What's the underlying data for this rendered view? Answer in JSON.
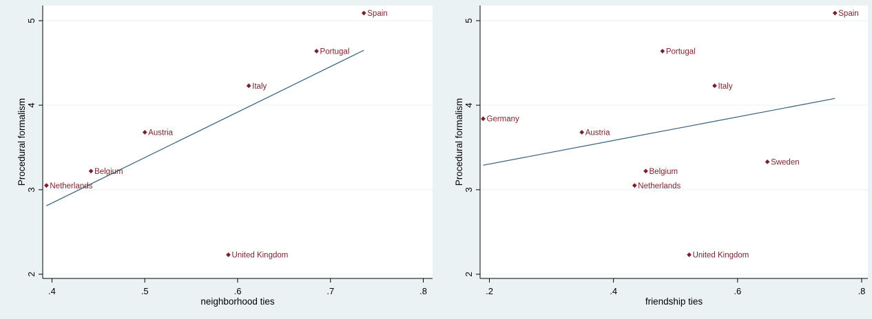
{
  "chart_data": [
    {
      "type": "scatter",
      "xlabel": "neighborhood ties",
      "ylabel": "Procedural formalism",
      "xlim": [
        0.39,
        0.81
      ],
      "ylim": [
        1.95,
        5.18
      ],
      "xticks": [
        0.4,
        0.5,
        0.6,
        0.7,
        0.8
      ],
      "xtick_labels": [
        ".4",
        ".5",
        ".6",
        ".7",
        ".8"
      ],
      "yticks": [
        2,
        3,
        4,
        5
      ],
      "ytick_labels": [
        "2",
        "3",
        "4",
        "5"
      ],
      "points": [
        {
          "label": "Spain",
          "x": 0.736,
          "y": 5.09
        },
        {
          "label": "Portugal",
          "x": 0.685,
          "y": 4.64
        },
        {
          "label": "Italy",
          "x": 0.612,
          "y": 4.23
        },
        {
          "label": "Austria",
          "x": 0.5,
          "y": 3.68
        },
        {
          "label": "Belgium",
          "x": 0.442,
          "y": 3.22
        },
        {
          "label": "Netherlands",
          "x": 0.394,
          "y": 3.05
        },
        {
          "label": "United Kingdom",
          "x": 0.59,
          "y": 2.23
        }
      ],
      "fit_line": {
        "x": [
          0.394,
          0.736
        ],
        "y": [
          2.81,
          4.65
        ]
      },
      "colors": {
        "marker": "#7a1f2b",
        "fit": "#2f5d7a",
        "plot_bg": "#ffffff",
        "grid": "#eaf2f3"
      },
      "grid": true
    },
    {
      "type": "scatter",
      "xlabel": "friendship ties",
      "ylabel": "Procedural formalism",
      "xlim": [
        0.185,
        0.81
      ],
      "ylim": [
        1.95,
        5.18
      ],
      "xticks": [
        0.2,
        0.4,
        0.6,
        0.8
      ],
      "xtick_labels": [
        ".2",
        ".4",
        ".6",
        ".8"
      ],
      "yticks": [
        2,
        3,
        4,
        5
      ],
      "ytick_labels": [
        "2",
        "3",
        "4",
        "5"
      ],
      "points": [
        {
          "label": "Spain",
          "x": 0.757,
          "y": 5.09
        },
        {
          "label": "Portugal",
          "x": 0.479,
          "y": 4.64
        },
        {
          "label": "Italy",
          "x": 0.563,
          "y": 4.23
        },
        {
          "label": "Germany",
          "x": 0.19,
          "y": 3.84
        },
        {
          "label": "Austria",
          "x": 0.349,
          "y": 3.68
        },
        {
          "label": "Sweden",
          "x": 0.648,
          "y": 3.33
        },
        {
          "label": "Belgium",
          "x": 0.452,
          "y": 3.22
        },
        {
          "label": "Netherlands",
          "x": 0.434,
          "y": 3.05
        },
        {
          "label": "United Kingdom",
          "x": 0.522,
          "y": 2.23
        }
      ],
      "fit_line": {
        "x": [
          0.19,
          0.757
        ],
        "y": [
          3.29,
          4.08
        ]
      },
      "colors": {
        "marker": "#7a1f2b",
        "fit": "#2f5d7a",
        "plot_bg": "#ffffff",
        "grid": "#eaf2f3"
      },
      "grid": true
    }
  ]
}
